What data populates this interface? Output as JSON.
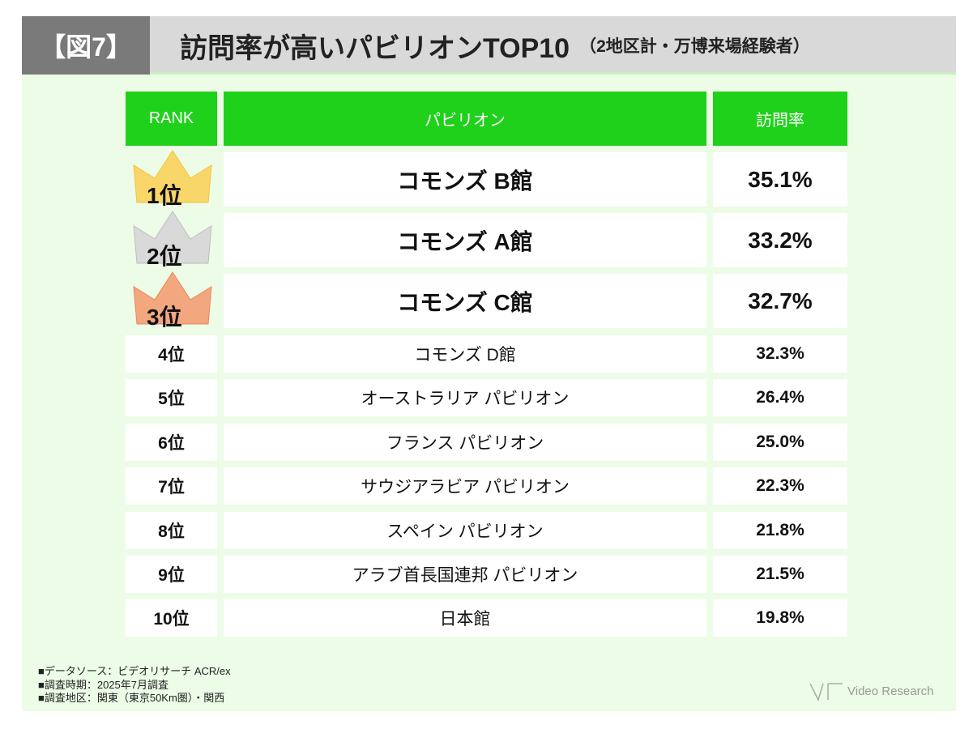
{
  "header": {
    "tag": "【図7】",
    "title": "訪問率が高いパビリオンTOP10",
    "subtitle": "（2地区計・万博来場経験者）"
  },
  "table": {
    "headers": [
      "RANK",
      "パビリオン",
      "訪問率"
    ],
    "rows": [
      [
        "1位",
        "コモンズ B館",
        "35.1%"
      ],
      [
        "2位",
        "コモンズ A館",
        "33.2%"
      ],
      [
        "3位",
        "コモンズ C館",
        "32.7%"
      ],
      [
        "4位",
        "コモンズ D館",
        "32.3%"
      ],
      [
        "5位",
        "オーストラリア パビリオン",
        "26.4%"
      ],
      [
        "6位",
        "フランス パビリオン",
        "25.0%"
      ],
      [
        "7位",
        "サウジアラビア パビリオン",
        "22.3%"
      ],
      [
        "8位",
        "スペイン パビリオン",
        "21.8%"
      ],
      [
        "9位",
        "アラブ首長国連邦 パビリオン",
        "21.5%"
      ],
      [
        "10位",
        "日本館",
        "19.8%"
      ]
    ]
  },
  "notes": [
    "■データソース：ビデオリサーチ ACR/ex",
    "■調査時期：2025年7月調査",
    "■調査地区：関東（東京50Km圏）・関西"
  ],
  "logo": "Video Research"
}
